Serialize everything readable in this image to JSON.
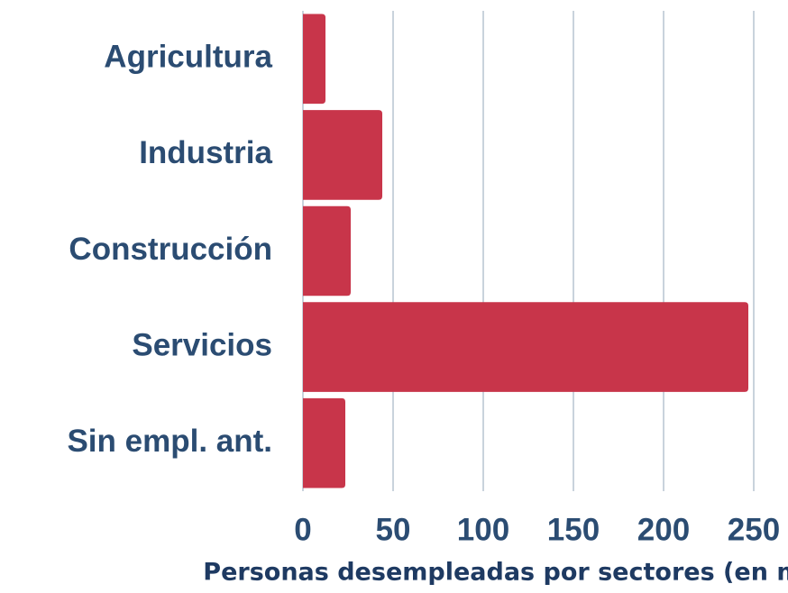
{
  "chart_data": {
    "type": "bar",
    "orientation": "horizontal",
    "categories": [
      "Agricultura",
      "Industria",
      "Construcción",
      "Servicios",
      "Sin empl. ant."
    ],
    "values": [
      12.5,
      44,
      26.5,
      247,
      23.5
    ],
    "color": "#c8354a",
    "xlim": [
      0,
      250
    ],
    "xticks": [
      0,
      50,
      100,
      150,
      200,
      250
    ],
    "x_label": "Personas desempleadas por sectores (en miles)",
    "grid": true
  }
}
